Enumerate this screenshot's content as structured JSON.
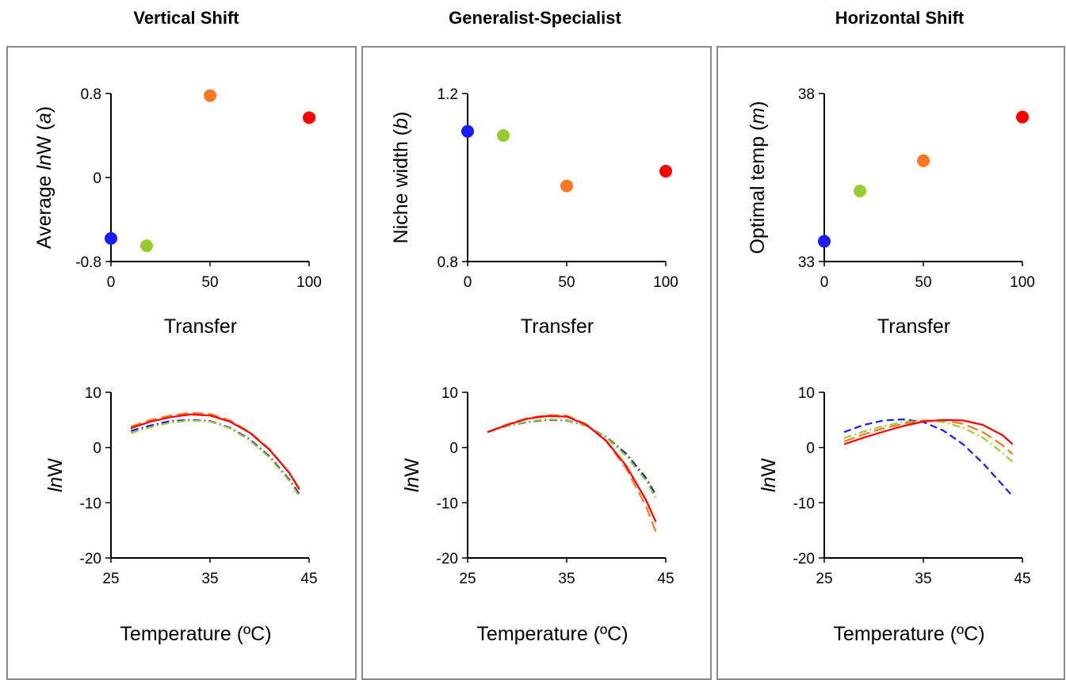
{
  "figure": {
    "columns": [
      {
        "title": "Vertical Shift"
      },
      {
        "title": "Generalist-Specialist"
      },
      {
        "title": "Horizontal Shift"
      }
    ]
  },
  "colors": {
    "blue": "#1a1aff",
    "green": "#99cc33",
    "orange": "#ff7722",
    "red": "#ff0000"
  },
  "chart_data": [
    {
      "type": "scatter",
      "column": 1,
      "ylabel_parts": [
        "Average ",
        "ln",
        "W (",
        "a",
        ")"
      ],
      "xlabel": "Transfer",
      "xlim": [
        0,
        100
      ],
      "ylim": [
        -0.8,
        0.8
      ],
      "xticks": [
        "0",
        "50",
        "100"
      ],
      "xtick_values": [
        0,
        50,
        100
      ],
      "yticks": [
        "-0.8",
        "0",
        "0.8"
      ],
      "ytick_values": [
        -0.8,
        0,
        0.8
      ],
      "points": [
        {
          "x": 0,
          "y": -0.58,
          "color": "blue"
        },
        {
          "x": 18,
          "y": -0.65,
          "color": "green"
        },
        {
          "x": 50,
          "y": 0.78,
          "color": "orange"
        },
        {
          "x": 100,
          "y": 0.57,
          "color": "red"
        }
      ]
    },
    {
      "type": "scatter",
      "column": 2,
      "ylabel_parts": [
        "Niche width (",
        "b",
        ")"
      ],
      "xlabel": "Transfer",
      "xlim": [
        0,
        100
      ],
      "ylim": [
        0.8,
        1.2
      ],
      "xticks": [
        "0",
        "50",
        "100"
      ],
      "xtick_values": [
        0,
        50,
        100
      ],
      "yticks": [
        "0.8",
        "1.2"
      ],
      "ytick_values": [
        0.8,
        1.2
      ],
      "points": [
        {
          "x": 0,
          "y": 1.11,
          "color": "blue"
        },
        {
          "x": 18,
          "y": 1.1,
          "color": "green"
        },
        {
          "x": 50,
          "y": 0.98,
          "color": "orange"
        },
        {
          "x": 100,
          "y": 1.015,
          "color": "red"
        }
      ]
    },
    {
      "type": "scatter",
      "column": 3,
      "ylabel_parts": [
        "Optimal temp (",
        "m",
        ")"
      ],
      "xlabel": "Transfer",
      "xlim": [
        0,
        100
      ],
      "ylim": [
        33,
        38
      ],
      "xticks": [
        "0",
        "50",
        "100"
      ],
      "xtick_values": [
        0,
        50,
        100
      ],
      "yticks": [
        "33",
        "38"
      ],
      "ytick_values": [
        33,
        38
      ],
      "points": [
        {
          "x": 0,
          "y": 33.6,
          "color": "blue"
        },
        {
          "x": 18,
          "y": 35.1,
          "color": "green"
        },
        {
          "x": 50,
          "y": 36,
          "color": "orange"
        },
        {
          "x": 100,
          "y": 37.3,
          "color": "red"
        }
      ]
    },
    {
      "type": "line",
      "column": 1,
      "ylabel_parts": [
        "ln",
        "W"
      ],
      "xlabel": "Temperature (ºC)",
      "xlim": [
        25,
        45
      ],
      "ylim": [
        -20,
        10
      ],
      "xticks": [
        "25",
        "35",
        "45"
      ],
      "xtick_values": [
        25,
        35,
        45
      ],
      "yticks": [
        "10",
        "0",
        "-10",
        "-20"
      ],
      "ytick_values": [
        10,
        0,
        -10,
        -20
      ],
      "series": [
        {
          "color": "blue",
          "dash": "dashdot",
          "x": [
            27,
            29,
            31,
            33,
            35,
            37,
            39,
            41,
            43,
            44
          ],
          "y": [
            3,
            4,
            4.8,
            5,
            4.8,
            3.6,
            1.5,
            -1.6,
            -5.8,
            -8.4
          ]
        },
        {
          "color": "green",
          "dash": "dashdot",
          "x": [
            27,
            29,
            31,
            33,
            35,
            37,
            39,
            41,
            43,
            44
          ],
          "y": [
            2.6,
            3.7,
            4.5,
            4.9,
            4.7,
            3.5,
            1.3,
            -1.8,
            -6,
            -8.8
          ]
        },
        {
          "color": "orange",
          "dash": "longdash",
          "x": [
            27,
            29,
            31,
            33,
            35,
            37,
            39,
            41,
            43,
            44
          ],
          "y": [
            3.8,
            5,
            5.8,
            6.3,
            6.1,
            4.9,
            2.8,
            -0.3,
            -4.6,
            -7.4
          ]
        },
        {
          "color": "red",
          "dash": "solid",
          "x": [
            27,
            29,
            31,
            33,
            35,
            37,
            39,
            41,
            43,
            44
          ],
          "y": [
            3.5,
            4.7,
            5.5,
            6,
            5.8,
            4.7,
            2.7,
            -0.4,
            -4.6,
            -7.6
          ]
        }
      ]
    },
    {
      "type": "line",
      "column": 2,
      "ylabel_parts": [
        "ln",
        "W"
      ],
      "xlabel": "Temperature (ºC)",
      "xlim": [
        25,
        45
      ],
      "ylim": [
        -20,
        10
      ],
      "xticks": [
        "25",
        "35",
        "45"
      ],
      "xtick_values": [
        25,
        35,
        45
      ],
      "yticks": [
        "10",
        "0",
        "-10",
        "-20"
      ],
      "ytick_values": [
        10,
        0,
        -10,
        -20
      ],
      "series": [
        {
          "color": "blue",
          "dash": "dashdot",
          "x": [
            27,
            29,
            31,
            33,
            35,
            37,
            39,
            41,
            43,
            44
          ],
          "y": [
            2.8,
            3.9,
            4.6,
            5,
            4.9,
            3.9,
            1.9,
            -1.1,
            -5.5,
            -8.6
          ]
        },
        {
          "color": "green",
          "dash": "dashdot",
          "x": [
            27,
            29,
            31,
            33,
            35,
            37,
            39,
            41,
            43,
            44
          ],
          "y": [
            2.8,
            3.9,
            4.7,
            5.1,
            5,
            3.9,
            1.8,
            -1.5,
            -6,
            -9.2
          ]
        },
        {
          "color": "orange",
          "dash": "longdash",
          "x": [
            27,
            29,
            31,
            33,
            35,
            37,
            39,
            41,
            43,
            44
          ],
          "y": [
            2.8,
            4.2,
            5.3,
            5.9,
            5.8,
            4.2,
            1.1,
            -3.8,
            -10.6,
            -15.3
          ]
        },
        {
          "color": "red",
          "dash": "solid",
          "x": [
            27,
            29,
            31,
            33,
            35,
            37,
            39,
            41,
            43,
            44
          ],
          "y": [
            2.8,
            4.1,
            5.2,
            5.7,
            5.6,
            4.1,
            1.2,
            -3.3,
            -9.5,
            -13.5
          ]
        }
      ]
    },
    {
      "type": "line",
      "column": 3,
      "ylabel_parts": [
        "ln",
        "W"
      ],
      "xlabel": "Temperature (ºC)",
      "xlim": [
        25,
        45
      ],
      "ylim": [
        -20,
        10
      ],
      "xticks": [
        "25",
        "35",
        "45"
      ],
      "xtick_values": [
        25,
        35,
        45
      ],
      "yticks": [
        "10",
        "0",
        "-10",
        "-20"
      ],
      "ytick_values": [
        10,
        0,
        -10,
        -20
      ],
      "series": [
        {
          "color": "blue",
          "dash": "dashed",
          "x": [
            27,
            29,
            31,
            33,
            35,
            37,
            39,
            41,
            43,
            44
          ],
          "y": [
            2.8,
            4.1,
            4.9,
            5.1,
            4.6,
            3.1,
            0.6,
            -2.8,
            -6.8,
            -8.8
          ]
        },
        {
          "color": "green",
          "dash": "dashdot",
          "x": [
            27,
            29,
            31,
            33,
            35,
            37,
            39,
            41,
            43,
            44
          ],
          "y": [
            1.7,
            2.9,
            3.9,
            4.6,
            4.9,
            4.6,
            3.6,
            1.8,
            -1,
            -2.6
          ]
        },
        {
          "color": "orange",
          "dash": "longdash",
          "x": [
            27,
            29,
            31,
            33,
            35,
            37,
            39,
            41,
            43,
            44
          ],
          "y": [
            1.1,
            2.4,
            3.5,
            4.3,
            4.9,
            4.9,
            4.3,
            2.8,
            0.4,
            -1.2
          ]
        },
        {
          "color": "red",
          "dash": "solid",
          "x": [
            27,
            29,
            31,
            33,
            35,
            37,
            39,
            41,
            43,
            44
          ],
          "y": [
            0.6,
            1.8,
            2.9,
            3.9,
            4.7,
            5,
            4.9,
            4.1,
            2.2,
            0.6
          ]
        }
      ]
    }
  ]
}
